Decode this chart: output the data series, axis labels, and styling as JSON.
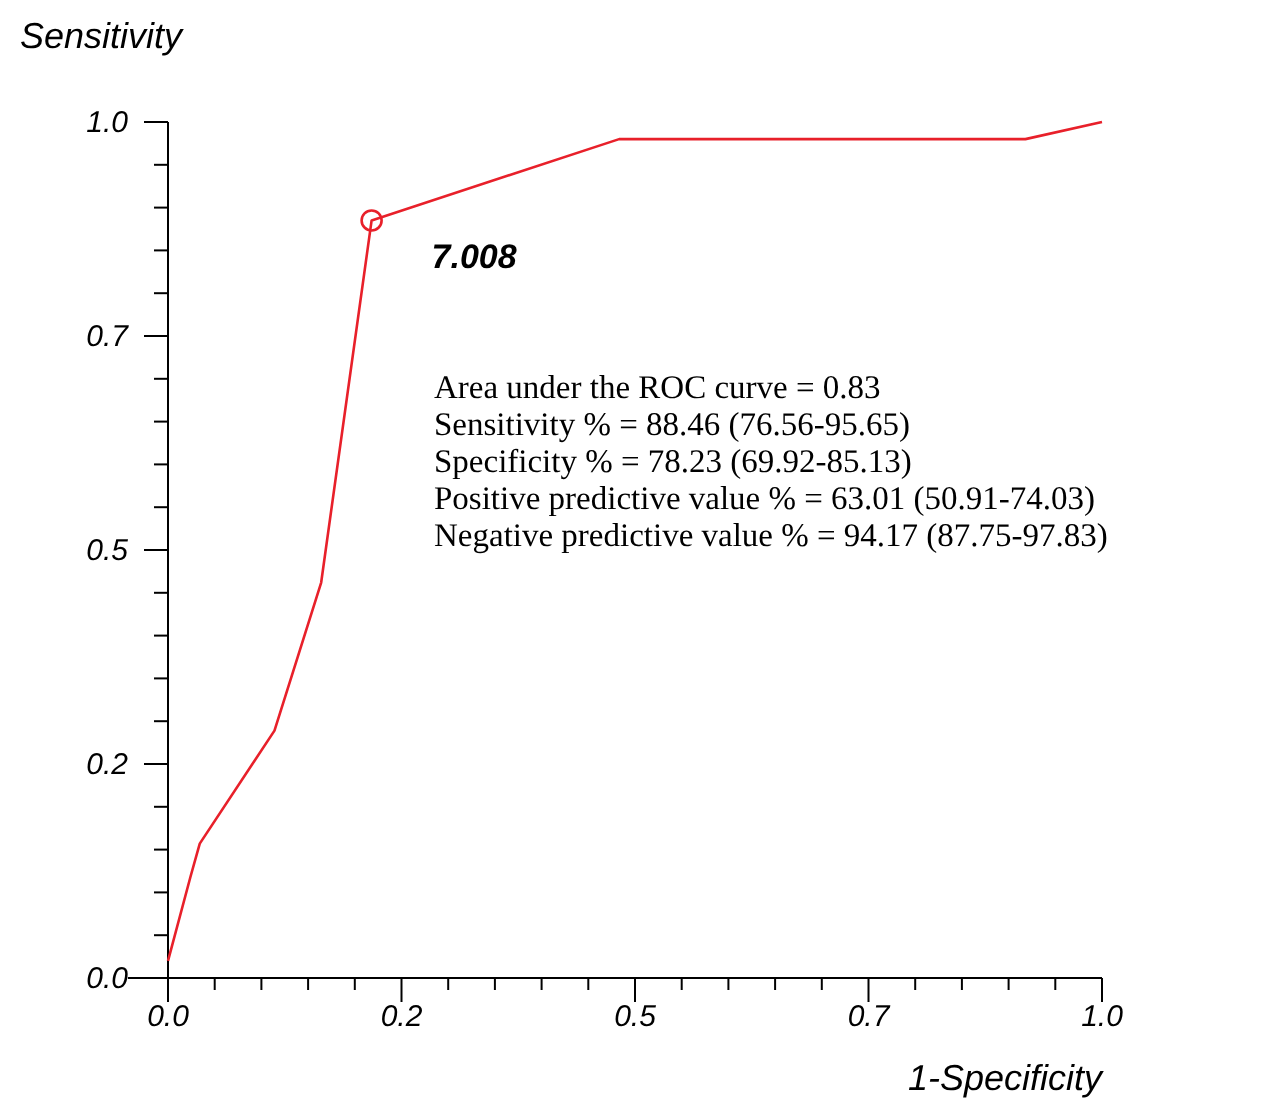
{
  "chart_data": {
    "type": "line",
    "xlabel": "1-Specificity",
    "ylabel": "Sensitivity",
    "xlim": [
      0,
      1
    ],
    "ylim": [
      0,
      1
    ],
    "xticks": [
      {
        "value": 0,
        "label": "0.0"
      },
      {
        "value": 0.05,
        "label": null
      },
      {
        "value": 0.1,
        "label": null
      },
      {
        "value": 0.15,
        "label": null
      },
      {
        "value": 0.2,
        "label": null
      },
      {
        "value": 0.25,
        "label": "0.2"
      },
      {
        "value": 0.3,
        "label": null
      },
      {
        "value": 0.35,
        "label": null
      },
      {
        "value": 0.4,
        "label": null
      },
      {
        "value": 0.45,
        "label": null
      },
      {
        "value": 0.5,
        "label": "0.5"
      },
      {
        "value": 0.55,
        "label": null
      },
      {
        "value": 0.6,
        "label": null
      },
      {
        "value": 0.65,
        "label": null
      },
      {
        "value": 0.7,
        "label": null
      },
      {
        "value": 0.75,
        "label": "0.7"
      },
      {
        "value": 0.8,
        "label": null
      },
      {
        "value": 0.85,
        "label": null
      },
      {
        "value": 0.9,
        "label": null
      },
      {
        "value": 0.95,
        "label": null
      },
      {
        "value": 1,
        "label": "1.0"
      }
    ],
    "yticks": [
      {
        "value": 0,
        "label": "0.0"
      },
      {
        "value": 0.05,
        "label": null
      },
      {
        "value": 0.1,
        "label": null
      },
      {
        "value": 0.15,
        "label": null
      },
      {
        "value": 0.2,
        "label": null
      },
      {
        "value": 0.25,
        "label": "0.2"
      },
      {
        "value": 0.3,
        "label": null
      },
      {
        "value": 0.35,
        "label": null
      },
      {
        "value": 0.4,
        "label": null
      },
      {
        "value": 0.45,
        "label": null
      },
      {
        "value": 0.5,
        "label": "0.5"
      },
      {
        "value": 0.55,
        "label": null
      },
      {
        "value": 0.6,
        "label": null
      },
      {
        "value": 0.65,
        "label": null
      },
      {
        "value": 0.7,
        "label": null
      },
      {
        "value": 0.75,
        "label": "0.7"
      },
      {
        "value": 0.8,
        "label": null
      },
      {
        "value": 0.85,
        "label": null
      },
      {
        "value": 0.9,
        "label": null
      },
      {
        "value": 0.95,
        "label": null
      },
      {
        "value": 1,
        "label": "1.0"
      }
    ],
    "grid": false,
    "series": [
      {
        "color": "#e8202a",
        "marker": "none",
        "x": [
          0,
          0.024,
          0.034,
          0.114,
          0.164,
          0.218,
          0.483,
          0.918,
          1
        ],
        "values": [
          0.02,
          0.118,
          0.157,
          0.289,
          0.462,
          0.885,
          0.98,
          0.98,
          1
        ]
      },
      {
        "type": "scatter",
        "color": "#e8202a",
        "marker": "circle",
        "x": [
          0.218
        ],
        "values": [
          0.885
        ]
      }
    ],
    "annotations": [
      {
        "text": "7.008",
        "x": 0.218,
        "y": 0.885
      },
      "Area under the ROC curve = 0.83",
      "Sensitivity % = 88.46 (76.56-95.65)",
      "Specificity % = 78.23 (69.92-85.13)",
      "Positive predictive value % = 63.01 (50.91-74.03)",
      "Negative predictive value % = 94.17 (87.75-97.83)"
    ]
  }
}
